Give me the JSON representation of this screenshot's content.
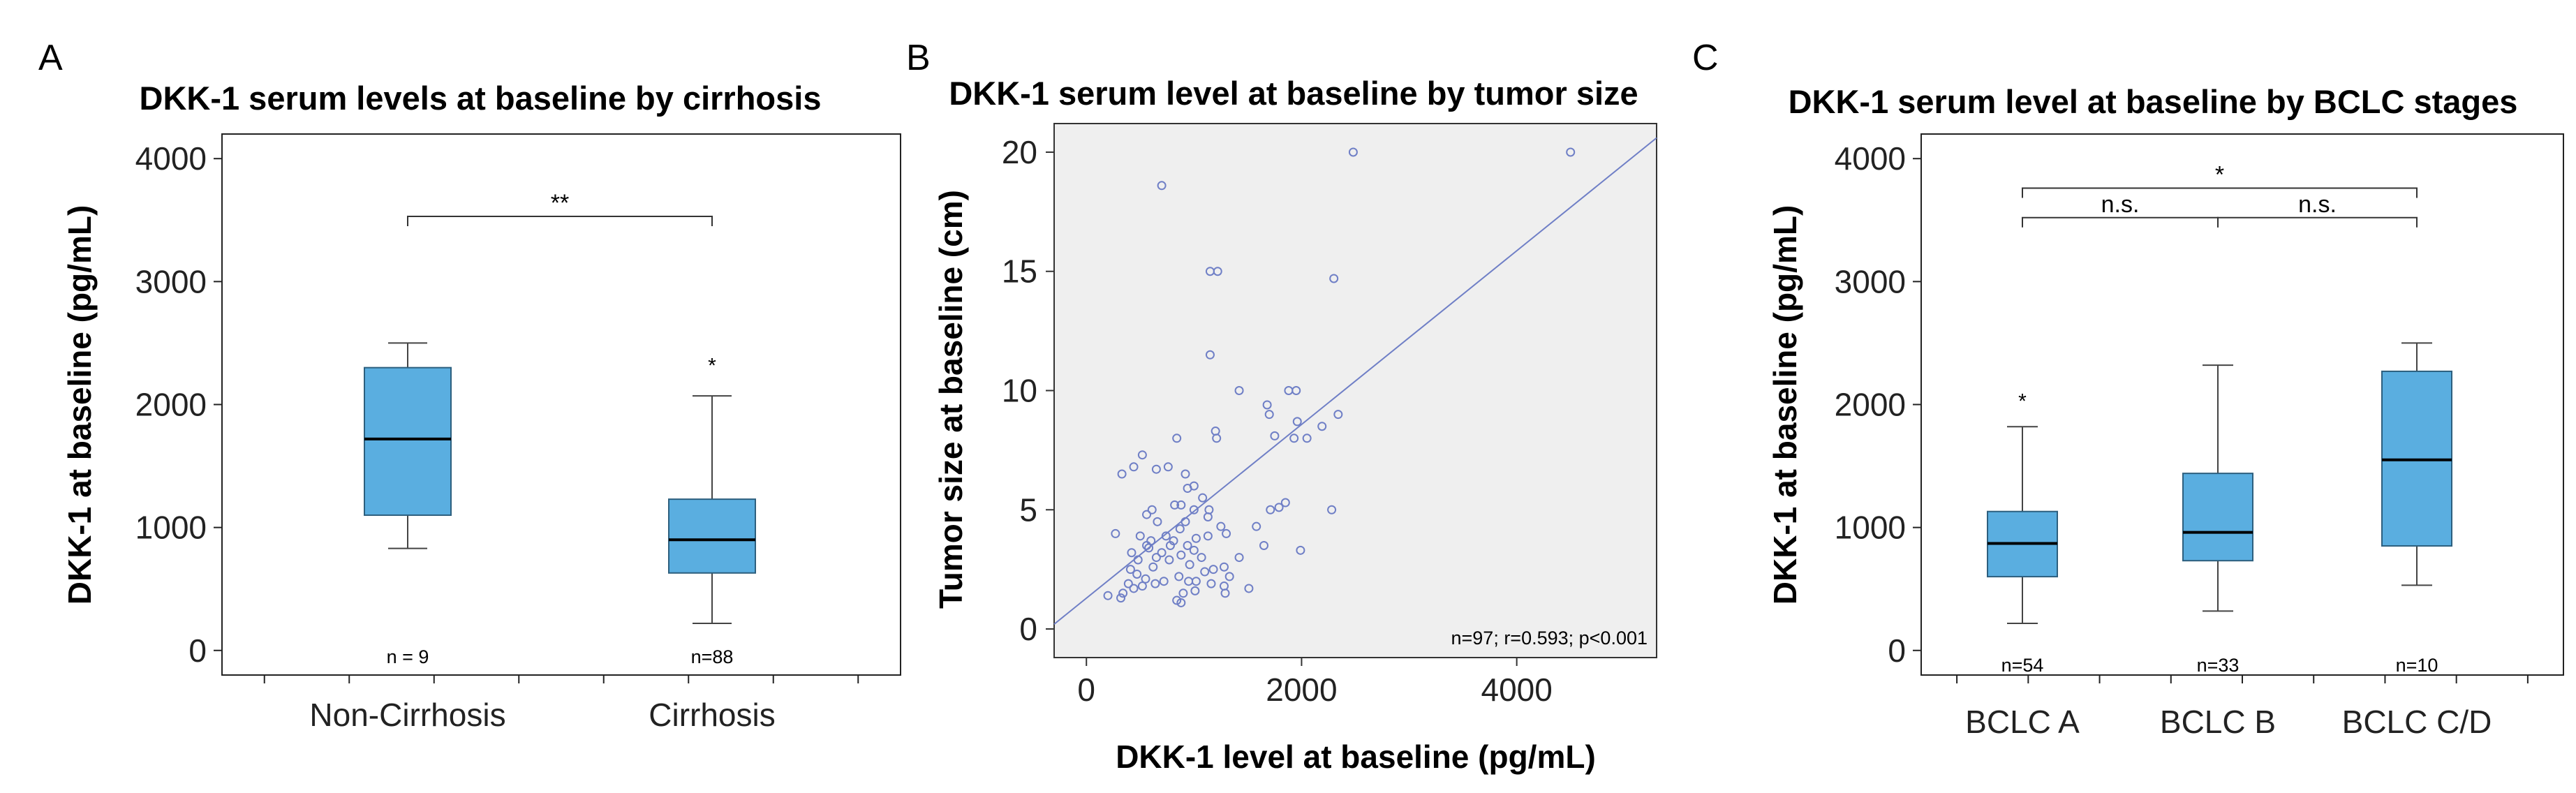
{
  "chart_data": [
    {
      "panel": "A",
      "type": "box",
      "title": "DKK-1 serum levels at baseline by cirrhosis",
      "xlabel": "",
      "ylabel": "DKK-1 at baseline (pg/mL)",
      "ylim": [
        -200,
        4200
      ],
      "yticks": [
        0,
        1000,
        2000,
        3000,
        4000
      ],
      "yticklabels": [
        "0",
        "1000",
        "2000",
        "3000",
        "4000"
      ],
      "categories": [
        "Non-Cirrhosis",
        "Cirrhosis"
      ],
      "boxes": [
        {
          "label": "Non-Cirrhosis",
          "min": 830,
          "q1": 1100,
          "median": 1720,
          "q3": 2300,
          "max": 2500,
          "outliers": [],
          "n_label": "n = 9"
        },
        {
          "label": "Cirrhosis",
          "min": 220,
          "q1": 630,
          "median": 900,
          "q3": 1230,
          "max": 2070,
          "outliers": [
            2330
          ],
          "n_label": "n=88"
        }
      ],
      "brackets": [
        {
          "from": 0,
          "to": 1,
          "y": 3530,
          "label": "**"
        }
      ]
    },
    {
      "panel": "B",
      "type": "scatter",
      "title": "DKK-1 serum level at baseline by tumor size",
      "xlabel": "DKK-1 level at baseline (pg/mL)",
      "ylabel": "Tumor size at baseline (cm)",
      "xlim": [
        -300,
        5300
      ],
      "ylim": [
        -1.2,
        21.2
      ],
      "xticks": [
        0,
        2000,
        4000
      ],
      "xticklabels": [
        "0",
        "2000",
        "4000"
      ],
      "yticks": [
        0,
        5,
        10,
        15,
        20
      ],
      "yticklabels": [
        "0",
        "5",
        "10",
        "15",
        "20"
      ],
      "annotation": "n=97; r=0.593; p<0.001",
      "fit_line": [
        [
          -300,
          0.2
        ],
        [
          5300,
          20.6
        ]
      ],
      "points": [
        [
          700,
          18.6
        ],
        [
          2480,
          20.0
        ],
        [
          4500,
          20.0
        ],
        [
          1150,
          15.0
        ],
        [
          1220,
          15.0
        ],
        [
          2300,
          14.7
        ],
        [
          1150,
          11.5
        ],
        [
          1420,
          10.0
        ],
        [
          1880,
          10.0
        ],
        [
          1950,
          10.0
        ],
        [
          1680,
          9.4
        ],
        [
          1700,
          9.0
        ],
        [
          2340,
          9.0
        ],
        [
          1960,
          8.7
        ],
        [
          1200,
          8.3
        ],
        [
          1210,
          8.0
        ],
        [
          840,
          8.0
        ],
        [
          1750,
          8.1
        ],
        [
          1930,
          8.0
        ],
        [
          2050,
          8.0
        ],
        [
          2190,
          8.5
        ],
        [
          520,
          7.3
        ],
        [
          330,
          6.5
        ],
        [
          440,
          6.8
        ],
        [
          650,
          6.7
        ],
        [
          760,
          6.8
        ],
        [
          920,
          6.5
        ],
        [
          1000,
          6.0
        ],
        [
          940,
          5.9
        ],
        [
          1080,
          5.5
        ],
        [
          880,
          5.2
        ],
        [
          820,
          5.2
        ],
        [
          610,
          5.0
        ],
        [
          1000,
          5.0
        ],
        [
          1140,
          5.0
        ],
        [
          1710,
          5.0
        ],
        [
          1790,
          5.1
        ],
        [
          1850,
          5.3
        ],
        [
          2280,
          5.0
        ],
        [
          1130,
          4.7
        ],
        [
          560,
          4.8
        ],
        [
          660,
          4.5
        ],
        [
          920,
          4.5
        ],
        [
          1250,
          4.3
        ],
        [
          1580,
          4.3
        ],
        [
          270,
          4.0
        ],
        [
          500,
          3.9
        ],
        [
          740,
          3.9
        ],
        [
          810,
          3.7
        ],
        [
          940,
          3.5
        ],
        [
          1020,
          3.8
        ],
        [
          1130,
          3.9
        ],
        [
          1300,
          4.0
        ],
        [
          1650,
          3.5
        ],
        [
          420,
          3.2
        ],
        [
          580,
          3.4
        ],
        [
          650,
          3.0
        ],
        [
          770,
          2.9
        ],
        [
          880,
          3.1
        ],
        [
          1000,
          3.3
        ],
        [
          1420,
          3.0
        ],
        [
          1990,
          3.3
        ],
        [
          600,
          3.7
        ],
        [
          620,
          2.6
        ],
        [
          470,
          2.3
        ],
        [
          550,
          2.1
        ],
        [
          860,
          2.2
        ],
        [
          950,
          2.0
        ],
        [
          1020,
          2.0
        ],
        [
          1100,
          2.4
        ],
        [
          1180,
          2.5
        ],
        [
          1280,
          2.6
        ],
        [
          390,
          1.9
        ],
        [
          440,
          1.7
        ],
        [
          640,
          1.9
        ],
        [
          720,
          2.0
        ],
        [
          900,
          1.5
        ],
        [
          1010,
          1.6
        ],
        [
          1160,
          1.9
        ],
        [
          1280,
          1.8
        ],
        [
          1510,
          1.7
        ],
        [
          840,
          1.2
        ],
        [
          880,
          1.1
        ],
        [
          1290,
          1.5
        ],
        [
          200,
          1.4
        ],
        [
          320,
          1.3
        ],
        [
          340,
          1.5
        ],
        [
          480,
          2.9
        ],
        [
          560,
          3.5
        ],
        [
          700,
          3.2
        ],
        [
          870,
          4.2
        ],
        [
          960,
          2.7
        ],
        [
          410,
          2.5
        ],
        [
          520,
          1.8
        ],
        [
          780,
          3.5
        ],
        [
          1070,
          3.0
        ],
        [
          1330,
          2.2
        ]
      ]
    },
    {
      "panel": "C",
      "type": "box",
      "title": "DKK-1 serum level at baseline by BCLC stages",
      "xlabel": "",
      "ylabel": "DKK-1 at baseline (pg/mL)",
      "ylim": [
        -200,
        4200
      ],
      "yticks": [
        0,
        1000,
        2000,
        3000,
        4000
      ],
      "yticklabels": [
        "0",
        "1000",
        "2000",
        "3000",
        "4000"
      ],
      "categories": [
        "BCLC A",
        "BCLC B",
        "BCLC C/D"
      ],
      "boxes": [
        {
          "label": "BCLC A",
          "min": 220,
          "q1": 600,
          "median": 870,
          "q3": 1130,
          "max": 1820,
          "outliers": [
            2040
          ],
          "n_label": "n=54"
        },
        {
          "label": "BCLC B",
          "min": 320,
          "q1": 730,
          "median": 960,
          "q3": 1440,
          "max": 2320,
          "outliers": [],
          "n_label": "n=33"
        },
        {
          "label": "BCLC C/D",
          "min": 530,
          "q1": 850,
          "median": 1550,
          "q3": 2270,
          "max": 2500,
          "outliers": [],
          "n_label": "n=10"
        }
      ],
      "brackets": [
        {
          "from": 0,
          "to": 1,
          "y": 3520,
          "label": "n.s."
        },
        {
          "from": 1,
          "to": 2,
          "y": 3520,
          "label": "n.s."
        },
        {
          "from": 0,
          "to": 2,
          "y": 3760,
          "label": "*"
        }
      ]
    }
  ],
  "colors": {
    "box_fill": "#5aaee0",
    "box_stroke": "#2d5f7e",
    "scatter": "#6f7fc6",
    "plot_bg": "#efefef"
  }
}
